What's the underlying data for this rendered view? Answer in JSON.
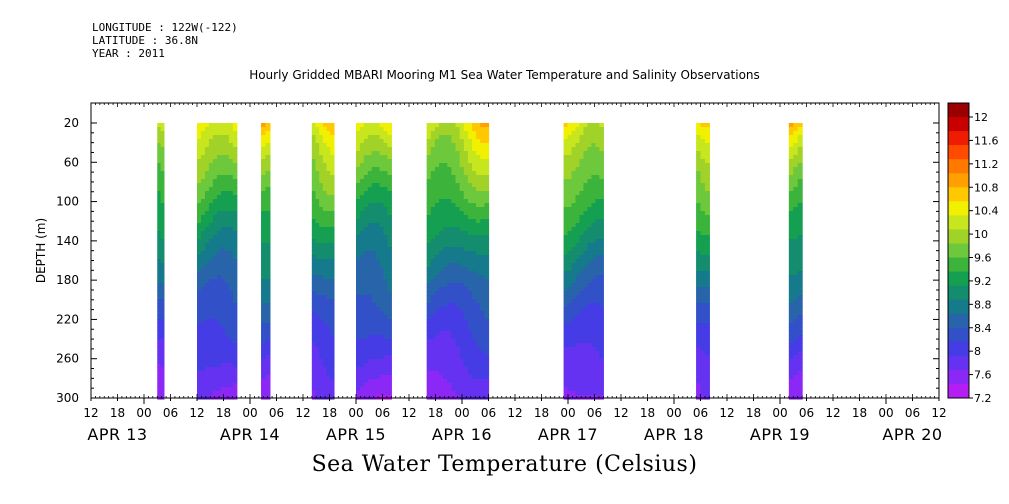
{
  "header": {
    "longitude": "LONGITUDE : 122W(-122)",
    "latitude": "LATITUDE : 36.8N",
    "year": "YEAR : 2011"
  },
  "title": "Hourly Gridded MBARI Mooring M1 Sea Water Temperature and Salinity Observations",
  "footer": "Sea Water Temperature (Celsius)",
  "chart_data": {
    "type": "heatmap",
    "title": "Hourly Gridded MBARI Mooring M1 Sea Water Temperature and Salinity Observations",
    "colorbar_label": "Sea Water Temperature (Celsius)",
    "ylabel": "DEPTH (m)",
    "ylim": [
      300,
      20
    ],
    "y_ticks": [
      20,
      60,
      100,
      140,
      180,
      220,
      260,
      300
    ],
    "x_hour_ticks": [
      "12",
      "18",
      "00",
      "06",
      "12",
      "18",
      "00",
      "06",
      "12",
      "18",
      "00",
      "06",
      "12",
      "18",
      "00",
      "06",
      "12",
      "18",
      "00",
      "06",
      "12",
      "18",
      "00",
      "06",
      "12",
      "18",
      "00",
      "06",
      "12",
      "18",
      "00",
      "06",
      "12"
    ],
    "x_day_labels": [
      "APR 13",
      "APR 14",
      "APR 15",
      "APR 16",
      "APR 17",
      "APR 18",
      "APR 19",
      "APR 20"
    ],
    "color_levels": [
      "12",
      "11.6",
      "11.2",
      "10.8",
      "10.4",
      "10",
      "9.6",
      "9.2",
      "8.8",
      "8.4",
      "8",
      "7.6",
      "7.2"
    ],
    "colors": [
      "#9a0000",
      "#c80000",
      "#ee1c00",
      "#ff4a00",
      "#ff7800",
      "#ffa000",
      "#ffc800",
      "#f0f000",
      "#c8e61e",
      "#a0d228",
      "#6ec83c",
      "#3cb43c",
      "#14a050",
      "#148c6e",
      "#147a8c",
      "#2864aa",
      "#3250c8",
      "#463ce6",
      "#6432f0",
      "#8c28f5",
      "#b41ef5"
    ],
    "observation_windows_hours_since_apr13_12z": [
      [
        15,
        16.5
      ],
      [
        24,
        33
      ],
      [
        38.5,
        40.5
      ],
      [
        50,
        55
      ],
      [
        60,
        68
      ],
      [
        76,
        90
      ],
      [
        107,
        116
      ],
      [
        137,
        140
      ],
      [
        158,
        161
      ]
    ]
  }
}
